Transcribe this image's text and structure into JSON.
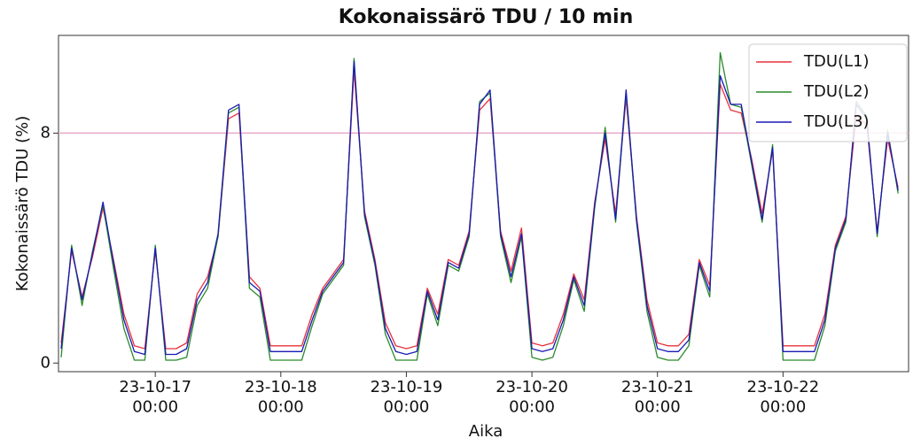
{
  "chart_data": {
    "type": "line",
    "title": "Kokonaissärö TDU / 10 min",
    "x_label": "Aika",
    "y_label": "Kokonaissärö TDU (%)",
    "x": [
      "23-10-16 06:00",
      "23-10-16 08:00",
      "23-10-16 10:00",
      "23-10-16 12:00",
      "23-10-16 14:00",
      "23-10-16 16:00",
      "23-10-16 18:00",
      "23-10-16 20:00",
      "23-10-16 22:00",
      "23-10-17 00:00",
      "23-10-17 02:00",
      "23-10-17 04:00",
      "23-10-17 06:00",
      "23-10-17 08:00",
      "23-10-17 10:00",
      "23-10-17 12:00",
      "23-10-17 14:00",
      "23-10-17 16:00",
      "23-10-17 18:00",
      "23-10-17 20:00",
      "23-10-17 22:00",
      "23-10-18 00:00",
      "23-10-18 02:00",
      "23-10-18 04:00",
      "23-10-18 06:00",
      "23-10-18 08:00",
      "23-10-18 10:00",
      "23-10-18 12:00",
      "23-10-18 14:00",
      "23-10-18 16:00",
      "23-10-18 18:00",
      "23-10-18 20:00",
      "23-10-18 22:00",
      "23-10-19 00:00",
      "23-10-19 02:00",
      "23-10-19 04:00",
      "23-10-19 06:00",
      "23-10-19 08:00",
      "23-10-19 10:00",
      "23-10-19 12:00",
      "23-10-19 14:00",
      "23-10-19 16:00",
      "23-10-19 18:00",
      "23-10-19 20:00",
      "23-10-19 22:00",
      "23-10-20 00:00",
      "23-10-20 02:00",
      "23-10-20 04:00",
      "23-10-20 06:00",
      "23-10-20 08:00",
      "23-10-20 10:00",
      "23-10-20 12:00",
      "23-10-20 14:00",
      "23-10-20 16:00",
      "23-10-20 18:00",
      "23-10-20 20:00",
      "23-10-20 22:00",
      "23-10-21 00:00",
      "23-10-21 02:00",
      "23-10-21 04:00",
      "23-10-21 06:00",
      "23-10-21 08:00",
      "23-10-21 10:00",
      "23-10-21 12:00",
      "23-10-21 14:00",
      "23-10-21 16:00",
      "23-10-21 18:00",
      "23-10-21 20:00",
      "23-10-21 22:00",
      "23-10-22 00:00",
      "23-10-22 02:00",
      "23-10-22 04:00",
      "23-10-22 06:00",
      "23-10-22 08:00",
      "23-10-22 10:00",
      "23-10-22 12:00",
      "23-10-22 14:00",
      "23-10-22 16:00",
      "23-10-22 18:00",
      "23-10-22 20:00",
      "23-10-22 22:00"
    ],
    "series": [
      {
        "name": "TDU(L1)",
        "color": "#e8323c",
        "values": [
          0.7,
          3.9,
          2.3,
          3.7,
          5.4,
          3.6,
          1.7,
          0.6,
          0.5,
          3.9,
          0.5,
          0.5,
          0.7,
          2.4,
          3.0,
          4.4,
          8.5,
          8.7,
          3.0,
          2.6,
          0.6,
          0.6,
          0.6,
          0.6,
          1.7,
          2.6,
          3.1,
          3.6,
          10.2,
          5.3,
          3.6,
          1.4,
          0.6,
          0.5,
          0.6,
          2.6,
          1.7,
          3.6,
          3.4,
          4.6,
          8.8,
          9.2,
          4.6,
          3.2,
          4.7,
          0.7,
          0.6,
          0.7,
          1.7,
          3.1,
          2.2,
          5.6,
          7.8,
          5.2,
          9.2,
          5.1,
          2.2,
          0.7,
          0.6,
          0.6,
          1.0,
          3.6,
          2.7,
          9.7,
          8.8,
          8.7,
          7.1,
          5.2,
          7.4,
          0.6,
          0.6,
          0.6,
          0.6,
          1.7,
          4.1,
          5.1,
          8.6,
          8.3,
          4.6,
          7.8,
          6.1
        ]
      },
      {
        "name": "TDU(L2)",
        "color": "#2a8a2a",
        "values": [
          0.2,
          4.1,
          2.0,
          3.9,
          5.5,
          3.3,
          1.2,
          0.1,
          0.1,
          4.1,
          0.1,
          0.1,
          0.2,
          2.0,
          2.6,
          4.4,
          8.7,
          8.9,
          2.6,
          2.3,
          0.1,
          0.1,
          0.1,
          0.1,
          1.3,
          2.4,
          2.9,
          3.4,
          10.6,
          5.1,
          3.4,
          1.0,
          0.1,
          0.1,
          0.1,
          2.4,
          1.3,
          3.4,
          3.2,
          4.4,
          9.1,
          9.4,
          4.4,
          2.8,
          4.4,
          0.2,
          0.1,
          0.2,
          1.3,
          2.9,
          1.8,
          5.4,
          8.2,
          4.9,
          9.4,
          4.9,
          1.8,
          0.2,
          0.1,
          0.1,
          0.6,
          3.4,
          2.3,
          10.8,
          9.0,
          8.9,
          6.9,
          4.9,
          7.6,
          0.1,
          0.1,
          0.1,
          0.1,
          1.3,
          3.9,
          4.9,
          9.1,
          8.6,
          4.4,
          8.1,
          5.9
        ]
      },
      {
        "name": "TDU(L3)",
        "color": "#1a1ab4",
        "values": [
          0.5,
          4.0,
          2.2,
          3.8,
          5.6,
          3.5,
          1.5,
          0.4,
          0.3,
          4.0,
          0.3,
          0.3,
          0.5,
          2.2,
          2.8,
          4.5,
          8.8,
          9.0,
          2.8,
          2.5,
          0.4,
          0.4,
          0.4,
          0.4,
          1.5,
          2.5,
          3.0,
          3.5,
          10.5,
          5.2,
          3.5,
          1.2,
          0.4,
          0.3,
          0.4,
          2.5,
          1.5,
          3.5,
          3.3,
          4.5,
          9.0,
          9.5,
          4.5,
          3.0,
          4.5,
          0.5,
          0.4,
          0.5,
          1.5,
          3.0,
          2.0,
          5.5,
          8.0,
          5.0,
          9.5,
          5.0,
          2.0,
          0.5,
          0.4,
          0.4,
          0.8,
          3.5,
          2.5,
          10.0,
          9.0,
          9.0,
          7.0,
          5.0,
          7.5,
          0.4,
          0.4,
          0.4,
          0.4,
          1.5,
          4.0,
          5.0,
          9.0,
          8.5,
          4.5,
          8.0,
          6.0
        ]
      }
    ],
    "xlim": [
      "23-10-16 05:30",
      "23-10-23 00:00"
    ],
    "xticks": [
      "23-10-17 00:00",
      "23-10-18 00:00",
      "23-10-19 00:00",
      "23-10-20 00:00",
      "23-10-21 00:00",
      "23-10-22 00:00"
    ],
    "ylim": [
      -0.3,
      11.4
    ],
    "yticks": [
      0,
      8
    ],
    "reference_line": {
      "value": 8,
      "color": "#e8a8c8"
    },
    "legend": "upper right"
  }
}
